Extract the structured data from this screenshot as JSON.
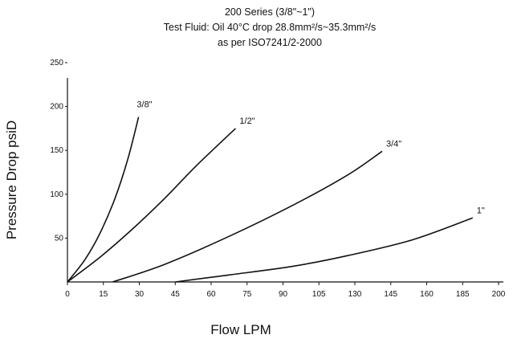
{
  "header": {
    "title_line1": "200 Series (3/8\"~1\")",
    "title_line2": "Test Fluid: Oil 40°C drop 28.8mm²/s~35.3mm²/s",
    "title_line3": "as per ISO7241/2-2000"
  },
  "chart_data": {
    "type": "line",
    "title": "200 Series (3/8\"~1\")",
    "subtitle": "Test Fluid: Oil 40°C drop 28.8mm²/s~35.3mm²/s as per ISO7241/2-2000",
    "xlabel": "Flow LPM",
    "ylabel": "Pressure Drop psiD",
    "xlim": [
      0,
      200
    ],
    "ylim": [
      0,
      250
    ],
    "x_ticks": [
      "0",
      "15",
      "30",
      "45",
      "60",
      "75",
      "90",
      "105",
      "130",
      "145",
      "160",
      "185",
      "200"
    ],
    "y_ticks": [
      "50",
      "100",
      "150",
      "200",
      "250"
    ],
    "grid": false,
    "legend": "none",
    "series": [
      {
        "name": "3/8\"",
        "x": [
          0,
          8,
          15,
          22,
          28,
          33
        ],
        "y": [
          0,
          25,
          55,
          95,
          140,
          188
        ]
      },
      {
        "name": "1/2\"",
        "x": [
          0,
          15,
          30,
          45,
          60,
          78
        ],
        "y": [
          0,
          28,
          60,
          95,
          133,
          175
        ]
      },
      {
        "name": "3/4\"",
        "x": [
          21,
          45,
          75,
          105,
          130,
          146
        ],
        "y": [
          0,
          20,
          52,
          88,
          122,
          149
        ]
      },
      {
        "name": "1\"",
        "x": [
          50,
          75,
          105,
          130,
          160,
          188
        ],
        "y": [
          0,
          8,
          18,
          30,
          48,
          73
        ]
      }
    ]
  }
}
